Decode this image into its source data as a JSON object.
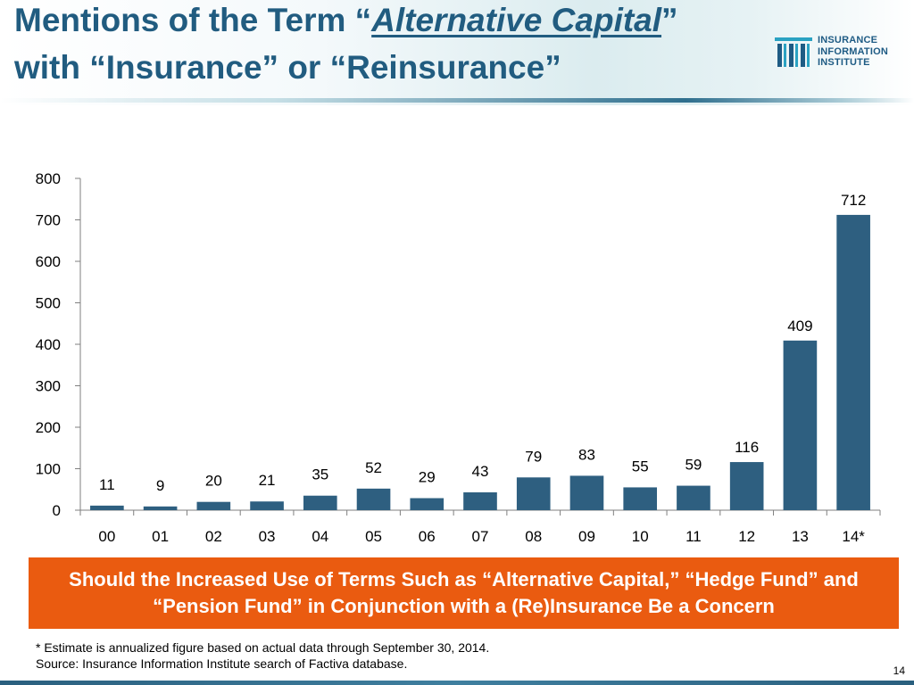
{
  "header": {
    "title_line1_pre": "Mentions of the Term “",
    "title_line1_emph": "Alternative Capital",
    "title_line1_post": "”",
    "title_line2": "with “Insurance” or “Reinsurance”",
    "logo_lines": [
      "INSURANCE",
      "INFORMATION",
      "INSTITUTE"
    ]
  },
  "chart_data": {
    "type": "bar",
    "categories": [
      "00",
      "01",
      "02",
      "03",
      "04",
      "05",
      "06",
      "07",
      "08",
      "09",
      "10",
      "11",
      "12",
      "13",
      "14*"
    ],
    "values": [
      11,
      9,
      20,
      21,
      35,
      52,
      29,
      43,
      79,
      83,
      55,
      59,
      116,
      409,
      712
    ],
    "ylim": [
      0,
      800
    ],
    "yticks": [
      0,
      100,
      200,
      300,
      400,
      500,
      600,
      700,
      800
    ],
    "bar_color": "#2e5f80",
    "grid": false,
    "data_labels": true
  },
  "callout": {
    "text": "Should the Increased Use of Terms Such as “Alternative Capital,” “Hedge Fund” and “Pension Fund” in Conjunction with a (Re)Insurance Be a Concern",
    "bg_color": "#ea5b10"
  },
  "footer": {
    "note": "* Estimate is annualized figure based on actual data through September 30, 2014.",
    "source": "Source: Insurance Information Institute search of Factiva database.",
    "page": "14"
  },
  "colors": {
    "title": "#215c80",
    "logo": "#1e5b84"
  }
}
